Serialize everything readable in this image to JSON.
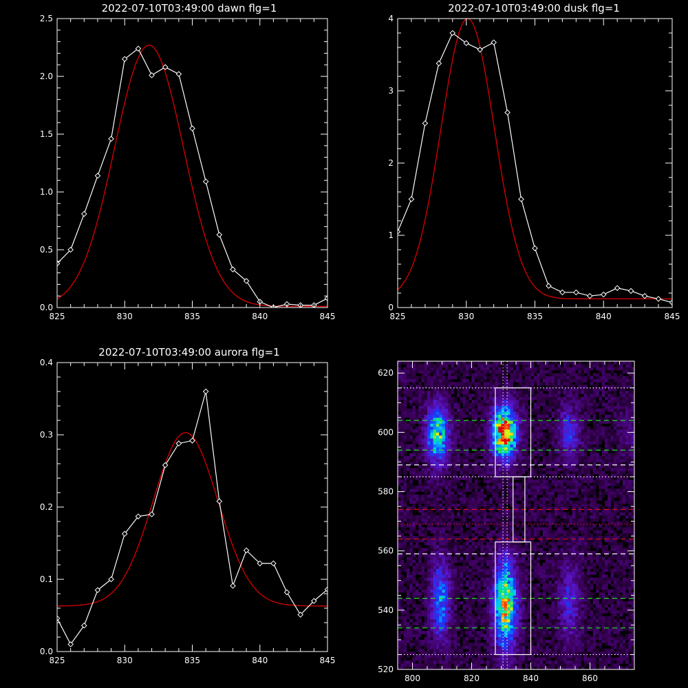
{
  "colors": {
    "background": "#000000",
    "axes": "#ffffff",
    "data_line": "#ffffff",
    "fit_line": "#dd0000",
    "green_dash": "#22dd22",
    "red_dash": "#dd1111",
    "white_dash": "#ffffff"
  },
  "chart_data": [
    {
      "id": "dawn",
      "type": "line",
      "title": "2022-07-10T03:49:00 dawn flg=1",
      "xlim": [
        825,
        845
      ],
      "ylim": [
        0,
        2.5
      ],
      "xticks": [
        825,
        830,
        835,
        840,
        845
      ],
      "xtick_labels": [
        "825",
        "830",
        "835",
        "840",
        "845"
      ],
      "yticks": [
        0,
        0.5,
        1.0,
        1.5,
        2.0,
        2.5
      ],
      "ytick_labels": [
        "0.0",
        "0.5",
        "1.0",
        "1.5",
        "2.0",
        "2.5"
      ],
      "series": [
        {
          "style": "white-line-diamond-markers",
          "x": [
            825,
            826,
            827,
            828,
            829,
            830,
            831,
            832,
            833,
            834,
            835,
            836,
            837,
            838,
            839,
            840,
            841,
            842,
            843,
            844,
            845
          ],
          "y": [
            0.38,
            0.5,
            0.81,
            1.14,
            1.46,
            2.15,
            2.24,
            2.01,
            2.08,
            2.02,
            1.55,
            1.09,
            0.63,
            0.33,
            0.23,
            0.05,
            0.0,
            0.03,
            0.02,
            0.02,
            0.08
          ]
        },
        {
          "style": "red-gaussian-fit",
          "model": "gaussian",
          "amplitude": 2.26,
          "center": 831.8,
          "sigma": 2.55,
          "baseline": 0.01
        }
      ]
    },
    {
      "id": "dusk",
      "type": "line",
      "title": "2022-07-10T03:49:00 dusk flg=1",
      "xlim": [
        825,
        845
      ],
      "ylim": [
        0,
        4
      ],
      "xticks": [
        825,
        830,
        835,
        840,
        845
      ],
      "xtick_labels": [
        "825",
        "830",
        "835",
        "840",
        "845"
      ],
      "yticks": [
        0,
        1,
        2,
        3,
        4
      ],
      "ytick_labels": [
        "0",
        "1",
        "2",
        "3",
        "4"
      ],
      "series": [
        {
          "style": "white-line-diamond-markers",
          "x": [
            825,
            826,
            827,
            828,
            829,
            830,
            831,
            832,
            833,
            834,
            835,
            836,
            837,
            838,
            839,
            840,
            841,
            842,
            843,
            844,
            845
          ],
          "y": [
            1.05,
            1.5,
            2.55,
            3.38,
            3.8,
            3.66,
            3.57,
            3.67,
            2.7,
            1.5,
            0.82,
            0.3,
            0.21,
            0.21,
            0.16,
            0.18,
            0.27,
            0.23,
            0.16,
            0.12,
            0.07
          ]
        },
        {
          "style": "red-gaussian-fit",
          "model": "gaussian",
          "amplitude": 3.88,
          "center": 830.1,
          "sigma": 1.95,
          "baseline": 0.12
        }
      ]
    },
    {
      "id": "aurora",
      "type": "line",
      "title": "2022-07-10T03:49:00 aurora flg=1",
      "xlim": [
        825,
        845
      ],
      "ylim": [
        0,
        0.4
      ],
      "xticks": [
        825,
        830,
        835,
        840,
        845
      ],
      "xtick_labels": [
        "825",
        "830",
        "835",
        "840",
        "845"
      ],
      "yticks": [
        0,
        0.1,
        0.2,
        0.3,
        0.4
      ],
      "ytick_labels": [
        "0.0",
        "0.1",
        "0.2",
        "0.3",
        "0.4"
      ],
      "series": [
        {
          "style": "white-line-diamond-markers",
          "x": [
            825,
            826,
            827,
            828,
            829,
            830,
            831,
            832,
            833,
            834,
            835,
            836,
            837,
            838,
            839,
            840,
            841,
            842,
            843,
            844,
            845
          ],
          "y": [
            0.046,
            0.01,
            0.036,
            0.085,
            0.1,
            0.163,
            0.187,
            0.19,
            0.258,
            0.288,
            0.292,
            0.36,
            0.208,
            0.091,
            0.14,
            0.122,
            0.122,
            0.082,
            0.051,
            0.07,
            0.086
          ]
        },
        {
          "style": "red-gaussian-fit",
          "model": "gaussian",
          "amplitude": 0.24,
          "center": 834.5,
          "sigma": 2.4,
          "baseline": 0.063
        }
      ]
    },
    {
      "id": "image",
      "type": "heatmap",
      "xlim": [
        795,
        875
      ],
      "ylim": [
        520,
        624
      ],
      "xticks": [
        800,
        820,
        840,
        860
      ],
      "xtick_labels": [
        "800",
        "820",
        "840",
        "860"
      ],
      "yticks": [
        520,
        540,
        560,
        580,
        600,
        620
      ],
      "ytick_labels": [
        "520",
        "540",
        "560",
        "580",
        "600",
        "620"
      ],
      "colormap": "rainbow-on-black",
      "intensity_blobs": [
        {
          "x": 808.5,
          "y": 599.5,
          "sx": 2.6,
          "sy": 6.5,
          "amp": 0.6
        },
        {
          "x": 831.0,
          "y": 600.0,
          "sx": 2.8,
          "sy": 6.0,
          "amp": 0.95
        },
        {
          "x": 853.0,
          "y": 600.0,
          "sx": 2.5,
          "sy": 6.0,
          "amp": 0.28
        },
        {
          "x": 874.0,
          "y": 600.0,
          "sx": 2.5,
          "sy": 6.0,
          "amp": 0.12
        },
        {
          "x": 809.5,
          "y": 543.0,
          "sx": 2.2,
          "sy": 9.0,
          "amp": 0.42
        },
        {
          "x": 831.5,
          "y": 542.0,
          "sx": 2.6,
          "sy": 10.0,
          "amp": 0.78
        },
        {
          "x": 853.0,
          "y": 543.0,
          "sx": 2.4,
          "sy": 9.0,
          "amp": 0.24
        }
      ],
      "background_level": 0.09,
      "boxes": [
        {
          "x0": 828.0,
          "x1": 840.0,
          "y0": 585.0,
          "y1": 615.0
        },
        {
          "x0": 828.0,
          "x1": 840.0,
          "y0": 525.0,
          "y1": 563.0
        },
        {
          "x0": 834.0,
          "x1": 838.0,
          "y0": 563.0,
          "y1": 585.0
        }
      ],
      "hlines": [
        {
          "y": 615.0,
          "style": "white-dotted"
        },
        {
          "y": 604.0,
          "style": "green-dashed"
        },
        {
          "y": 594.0,
          "style": "green-dashed"
        },
        {
          "y": 589.0,
          "style": "white-dashed"
        },
        {
          "y": 585.0,
          "style": "white-dotted"
        },
        {
          "y": 574.0,
          "style": "red-dashed"
        },
        {
          "y": 569.0,
          "style": "red-dotted"
        },
        {
          "y": 564.0,
          "style": "red-dashed"
        },
        {
          "y": 559.0,
          "style": "white-dashed"
        },
        {
          "y": 544.0,
          "style": "green-dashed"
        },
        {
          "y": 534.0,
          "style": "green-dashed"
        },
        {
          "y": 525.0,
          "style": "white-dotted"
        }
      ],
      "vlines": [
        {
          "x": 830.6,
          "style": "white-dotted"
        },
        {
          "x": 832.0,
          "style": "white-dotted"
        }
      ]
    }
  ]
}
